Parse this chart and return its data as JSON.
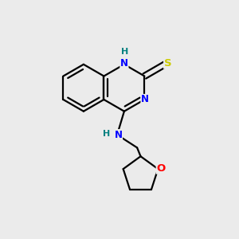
{
  "background_color": "#ebebeb",
  "bond_color": "#000000",
  "atom_colors": {
    "N": "#0000ff",
    "S": "#cccc00",
    "O": "#ff0000",
    "H_label": "#008080",
    "C": "#000000"
  },
  "figsize": [
    3.0,
    3.0
  ],
  "dpi": 100
}
